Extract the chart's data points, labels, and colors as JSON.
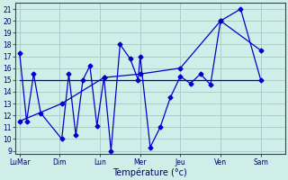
{
  "background_color": "#d0eee8",
  "grid_color": "#aacccc",
  "line_color": "#0000cc",
  "marker_size": 2.5,
  "xlabel": "Température (°c)",
  "xlabel_fontsize": 7,
  "yticks": [
    9,
    10,
    11,
    12,
    13,
    14,
    15,
    16,
    17,
    18,
    19,
    20,
    21
  ],
  "ylim": [
    8.7,
    21.5
  ],
  "xlim": [
    -0.2,
    13.2
  ],
  "xtick_labels": [
    "LuMar",
    "Dim",
    "Lun",
    "Mer",
    "Jeu",
    "Ven",
    "Sam"
  ],
  "xtick_positions": [
    0,
    2,
    4,
    6,
    8,
    10,
    12
  ],
  "line1_x": [
    0,
    0.35,
    0.7,
    1.05,
    2.1,
    2.45,
    2.8,
    3.15,
    3.5,
    3.85,
    4.2,
    4.55,
    5.0,
    5.5,
    5.9,
    6.0,
    6.5,
    7.0,
    7.5,
    8.0,
    8.5,
    9.0,
    9.5,
    10.0,
    11.0,
    12.0
  ],
  "line1_y": [
    17.3,
    11.5,
    15.5,
    12.2,
    10.0,
    15.5,
    10.3,
    15.0,
    16.2,
    11.1,
    15.2,
    9.0,
    18.0,
    16.8,
    15.0,
    17.0,
    9.3,
    11.0,
    13.5,
    15.3,
    14.7,
    15.5,
    14.6,
    20.0,
    21.0,
    15.0
  ],
  "line2_x": [
    0,
    2.1,
    4.2,
    6.0,
    8.0,
    10.0,
    12.0
  ],
  "line2_y": [
    11.5,
    13.0,
    15.2,
    15.5,
    16.0,
    20.0,
    17.5
  ],
  "line3_x": [
    0,
    12.0
  ],
  "line3_y": [
    15.0,
    15.0
  ]
}
